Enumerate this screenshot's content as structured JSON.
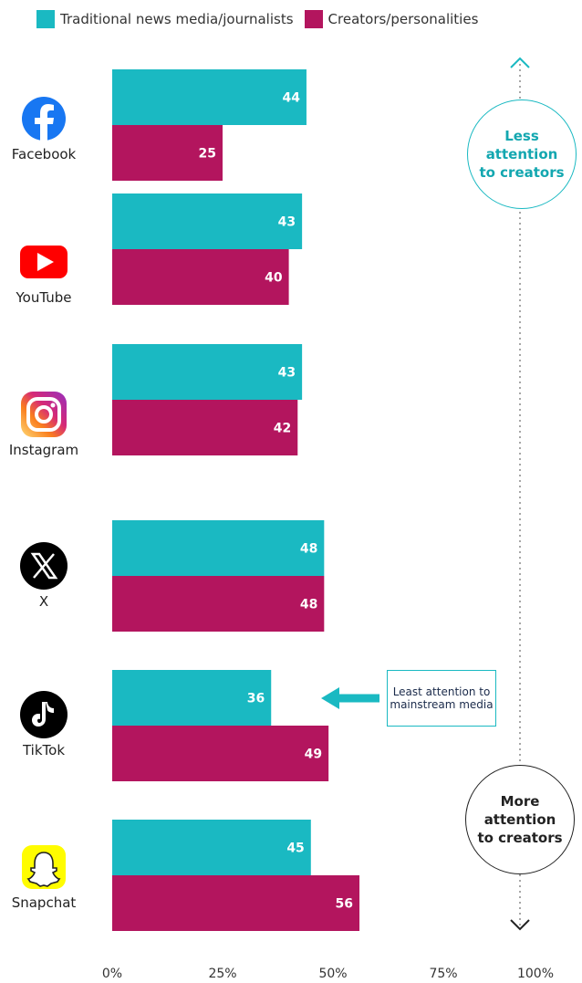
{
  "colors": {
    "traditional": "#1ab9c2",
    "creators": "#b3155e",
    "axis_text": "#333333"
  },
  "legend": {
    "traditional_label": "Traditional news media/journalists",
    "creators_label": "Creators/personalities"
  },
  "annotations": {
    "top_circle": "Less attention to creators",
    "bottom_circle": "More attention to creators",
    "callout": "Least attention to mainstream media",
    "callout_target": "TikTok"
  },
  "chart_data": {
    "type": "bar",
    "orientation": "horizontal",
    "categories": [
      "Facebook",
      "YouTube",
      "Instagram",
      "X",
      "TikTok",
      "Snapchat"
    ],
    "category_icons": [
      "facebook-icon",
      "youtube-icon",
      "instagram-icon",
      "x-icon",
      "tiktok-icon",
      "snapchat-icon"
    ],
    "series": [
      {
        "name": "Traditional news media/journalists",
        "values": [
          44,
          43,
          43,
          48,
          36,
          45
        ]
      },
      {
        "name": "Creators/personalities",
        "values": [
          25,
          40,
          42,
          48,
          49,
          56
        ]
      }
    ],
    "xlim": [
      0,
      100
    ],
    "x_ticks": [
      "0%",
      "25%",
      "50%",
      "75%",
      "100%"
    ],
    "grid": false,
    "legend_position": "top"
  }
}
